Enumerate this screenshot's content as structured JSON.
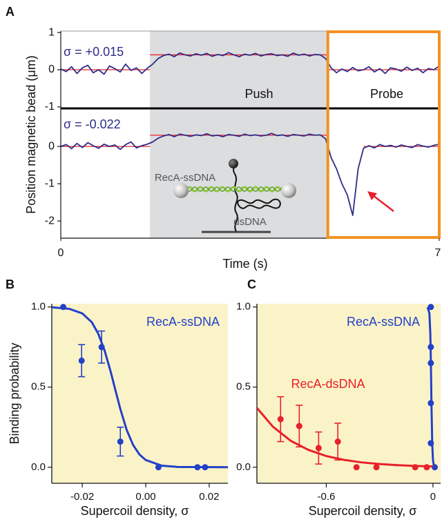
{
  "chart_data": [
    {
      "type": "line",
      "panel_label": "A",
      "ylabel": "Position magnetic bead (μm)",
      "xlabel": "Time (s)",
      "xlim": [
        0,
        7
      ],
      "xticks": [
        0,
        7
      ],
      "shaded_region": [
        1.65,
        4.94
      ],
      "box_region": [
        4.94,
        7
      ],
      "shade_color": "#dcdddf",
      "box_color": "#f39221",
      "annotations": [
        "Push",
        "Probe",
        "RecA-ssDNA",
        "dsDNA"
      ],
      "x": [
        0,
        0.1,
        0.2,
        0.3,
        0.4,
        0.5,
        0.6,
        0.7,
        0.8,
        0.9,
        1,
        1.1,
        1.2,
        1.3,
        1.4,
        1.5,
        1.6,
        1.7,
        1.8,
        1.9,
        2,
        2.1,
        2.2,
        2.3,
        2.4,
        2.5,
        2.6,
        2.7,
        2.8,
        2.9,
        3,
        3.1,
        3.2,
        3.3,
        3.4,
        3.5,
        3.6,
        3.7,
        3.8,
        3.9,
        4,
        4.1,
        4.2,
        4.3,
        4.4,
        4.5,
        4.6,
        4.7,
        4.8,
        4.9,
        5,
        5.1,
        5.2,
        5.3,
        5.4,
        5.5,
        5.6,
        5.7,
        5.8,
        5.9,
        6,
        6.1,
        6.2,
        6.3,
        6.4,
        6.5,
        6.6,
        6.7,
        6.8,
        6.9,
        7
      ],
      "subplots": [
        {
          "title": "σ = +0.015",
          "ylim": [
            -1.04,
            1.04
          ],
          "yticks": [
            -1,
            0,
            1
          ],
          "series": [
            {
              "color": "#e8202a",
              "x": [
                0,
                1.65,
                1.65,
                1.65,
                4.94,
                4.94,
                4.94,
                7
              ],
              "values": [
                0,
                0,
                null,
                0.4,
                0.4,
                null,
                0,
                0
              ]
            },
            {
              "color": "#2b2d87",
              "values": [
                0.02,
                -0.05,
                0.08,
                -0.1,
                0.05,
                0.12,
                -0.08,
                0.0,
                -0.12,
                0.1,
                0.03,
                -0.06,
                0.15,
                -0.02,
                0.05,
                -0.1,
                0.04,
                0.15,
                0.3,
                0.38,
                0.42,
                0.35,
                0.45,
                0.4,
                0.37,
                0.43,
                0.39,
                0.44,
                0.36,
                0.41,
                0.38,
                0.46,
                0.4,
                0.35,
                0.42,
                0.39,
                0.44,
                0.37,
                0.41,
                0.43,
                0.38,
                0.4,
                0.36,
                0.45,
                0.39,
                0.42,
                0.37,
                0.41,
                0.4,
                0.3,
                0.05,
                -0.08,
                0.02,
                -0.05,
                0.06,
                -0.03,
                0.0,
                0.08,
                -0.06,
                0.03,
                -0.1,
                0.05,
                0.02,
                -0.04,
                0.07,
                -0.02,
                0.04,
                -0.08,
                0.03,
                0.0,
                0.1
              ]
            }
          ]
        },
        {
          "title": "σ = -0.022",
          "ylim": [
            -2.46,
            1.02
          ],
          "yticks": [
            -2,
            -1,
            0
          ],
          "series": [
            {
              "color": "#e8202a",
              "x": [
                0,
                1.65,
                1.65,
                1.65,
                4.94,
                4.94,
                5.6,
                7
              ],
              "values": [
                0,
                0,
                null,
                0.3,
                0.3,
                null,
                0,
                0
              ]
            },
            {
              "color": "#2b2d87",
              "values": [
                0.0,
                0.05,
                -0.06,
                0.08,
                -0.03,
                0.1,
                0.02,
                -0.05,
                0.06,
                0.0,
                0.04,
                -0.08,
                0.05,
                0.12,
                -0.04,
                0.02,
                0.06,
                0.12,
                0.22,
                0.28,
                0.32,
                0.26,
                0.33,
                0.3,
                0.27,
                0.31,
                0.29,
                0.34,
                0.28,
                0.3,
                0.26,
                0.32,
                0.3,
                0.27,
                0.33,
                0.29,
                0.31,
                0.28,
                0.3,
                0.35,
                0.29,
                0.31,
                0.27,
                0.32,
                0.3,
                0.28,
                0.33,
                0.3,
                0.31,
                0.2,
                -0.3,
                -0.6,
                -1.0,
                -1.3,
                -1.85,
                -0.6,
                -0.05,
                0.02,
                -0.04,
                0.05,
                0.0,
                0.03,
                -0.02,
                0.04,
                0.0,
                -0.03,
                0.05,
                0.01,
                -0.02,
                0.03,
                0.06
              ]
            }
          ]
        }
      ]
    },
    {
      "type": "scatter",
      "panel_label": "B",
      "ylabel": "Binding probability",
      "xlabel": "Supercoil density, σ",
      "xlim": [
        -0.0296,
        0.0259
      ],
      "ylim": [
        -0.1,
        1.02
      ],
      "xticks": [
        -0.02,
        {
          "value": 0,
          "label": "0.00"
        },
        0.02
      ],
      "yticks": [
        {
          "value": 0,
          "label": "0.0"
        },
        0.5,
        {
          "value": 1,
          "label": "1.0"
        }
      ],
      "background": "#fbf3c8",
      "series": [
        {
          "name": "RecA-ssDNA",
          "color": "#2340c8",
          "x": [
            -0.026,
            -0.0202,
            -0.0139,
            -0.008,
            0.004,
            0.0163,
            0.0187
          ],
          "values": [
            1.0,
            0.665,
            0.75,
            0.16,
            0.0,
            0.0,
            0.0
          ],
          "errors": [
            null,
            0.1,
            0.1,
            0.09,
            null,
            null,
            null
          ],
          "fit": {
            "x": [
              -0.0296,
              -0.024,
              -0.02,
              -0.017,
              -0.015,
              -0.013,
              -0.011,
              -0.0098,
              -0.008,
              -0.006,
              -0.004,
              -0.002,
              0.0,
              0.005,
              0.01,
              0.0259
            ],
            "values": [
              0.998,
              0.988,
              0.96,
              0.905,
              0.835,
              0.731,
              0.593,
              0.5,
              0.363,
              0.233,
              0.14,
              0.08,
              0.045,
              0.01,
              0.002,
              0.0
            ]
          }
        }
      ]
    },
    {
      "type": "scatter",
      "panel_label": "C",
      "xlabel": "Supercoil density, σ",
      "xlim": [
        -0.99,
        0.043
      ],
      "ylim": [
        -0.1,
        1.02
      ],
      "xticks": [
        -0.6,
        0
      ],
      "yticks": [
        {
          "value": 0,
          "label": "0.0"
        },
        0.5,
        {
          "value": 1,
          "label": "1.0"
        }
      ],
      "background": "#fbf3c8",
      "series": [
        {
          "name": "RecA-ssDNA",
          "color": "#2340c8",
          "x": [
            -0.012,
            -0.012,
            -0.012,
            -0.012,
            -0.012,
            0.01
          ],
          "values": [
            1.0,
            0.75,
            0.65,
            0.4,
            0.15,
            0.0
          ],
          "errors": [
            null,
            null,
            null,
            null,
            null,
            null
          ],
          "fit": {
            "x": [
              -0.03,
              -0.02,
              -0.015,
              -0.013,
              -0.011,
              -0.008,
              -0.004,
              0.0,
              0.005,
              0.01
            ],
            "values": [
              0.998,
              0.96,
              0.835,
              0.731,
              0.593,
              0.363,
              0.14,
              0.045,
              0.01,
              0.002
            ]
          }
        },
        {
          "name": "RecA-dsDNA",
          "color": "#e8202a",
          "x": [
            -0.857,
            -0.752,
            -0.643,
            -0.535,
            -0.43,
            -0.318,
            -0.1,
            -0.035
          ],
          "values": [
            0.3,
            0.257,
            0.12,
            0.16,
            0.0,
            0.0,
            0.0,
            0.0
          ],
          "errors": [
            0.14,
            0.13,
            0.1,
            0.115,
            null,
            null,
            null,
            null
          ],
          "fit": {
            "x": [
              -0.99,
              -0.9,
              -0.8,
              -0.7,
              -0.6,
              -0.5,
              -0.4,
              -0.3,
              -0.2,
              -0.1,
              0.0
            ],
            "values": [
              0.37,
              0.253,
              0.165,
              0.108,
              0.07,
              0.046,
              0.03,
              0.02,
              0.013,
              0.008,
              0.005
            ]
          }
        }
      ]
    }
  ]
}
